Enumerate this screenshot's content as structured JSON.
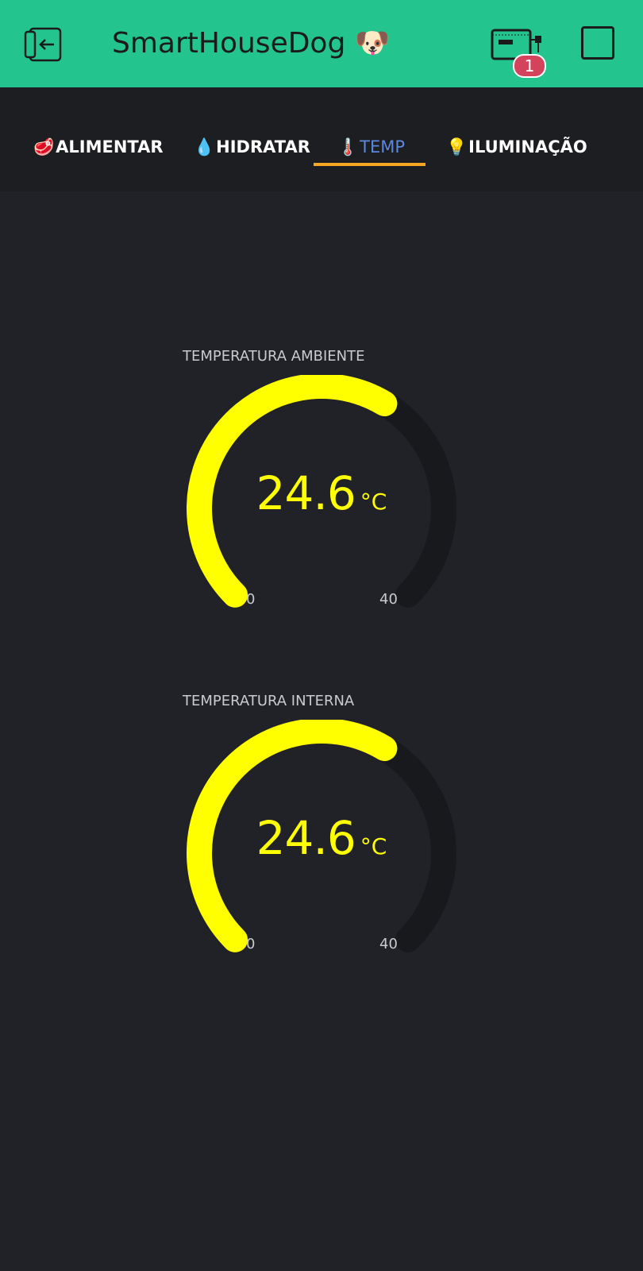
{
  "header": {
    "title": "SmartHouseDog",
    "title_emoji": "🐶",
    "device_badge_count": "1",
    "background": "#23c48e"
  },
  "tabs": [
    {
      "emoji": "🥩",
      "label": "ALIMENTAR",
      "active": false
    },
    {
      "emoji": "💧",
      "label": "HIDRATAR",
      "active": false
    },
    {
      "emoji": "🌡️",
      "label": "TEMP",
      "active": true
    },
    {
      "emoji": "💡",
      "label": "ILUMINAÇÃO",
      "active": false
    }
  ],
  "gauges": [
    {
      "title": "TEMPERATURA AMBIENTE",
      "value": "24.6",
      "unit": "°C",
      "min": "0",
      "max": "40",
      "color": "#ffff00"
    },
    {
      "title": "TEMPERATURA INTERNA",
      "value": "24.6",
      "unit": "°C",
      "min": "0",
      "max": "40",
      "color": "#ffff00"
    }
  ],
  "colors": {
    "accent_underline": "#f5a623",
    "active_tab": "#5b88dd",
    "gauge_track": "#18191c",
    "background": "#212227"
  }
}
